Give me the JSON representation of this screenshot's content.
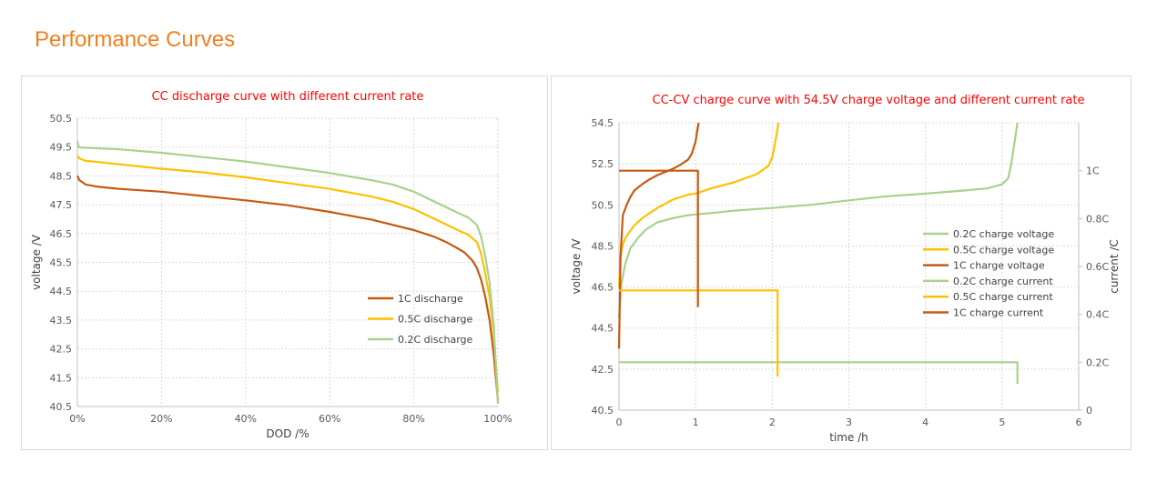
{
  "page": {
    "title": "Performance Curves"
  },
  "chart_data": [
    {
      "type": "line",
      "title": "CC discharge curve with different current rate",
      "xlabel": "DOD /%",
      "ylabel": "voltage /V",
      "xlim": [
        0,
        100
      ],
      "ylim": [
        40.5,
        50.5
      ],
      "x_ticks": [
        0,
        20,
        40,
        60,
        80,
        100
      ],
      "x_tick_labels": [
        "0%",
        "20%",
        "40%",
        "60%",
        "80%",
        "100%"
      ],
      "y_ticks": [
        40.5,
        41.5,
        42.5,
        43.5,
        44.5,
        45.5,
        46.5,
        47.5,
        48.5,
        49.5,
        50.5
      ],
      "y_tick_labels": [
        "40.5",
        "41.5",
        "42.5",
        "43.5",
        "44.5",
        "45.5",
        "46.5",
        "47.5",
        "48.5",
        "49.5",
        "50.5"
      ],
      "grid": true,
      "legend_position": "right-lower",
      "series": [
        {
          "name": "1C discharge",
          "color": "#c55a11",
          "x": [
            0,
            0.5,
            2,
            5,
            10,
            20,
            30,
            40,
            50,
            60,
            70,
            80,
            85,
            88,
            90,
            92,
            94,
            95,
            96,
            97,
            98,
            99,
            100
          ],
          "y": [
            48.5,
            48.35,
            48.2,
            48.12,
            48.05,
            47.95,
            47.8,
            47.65,
            47.48,
            47.25,
            46.98,
            46.62,
            46.38,
            46.18,
            46.02,
            45.85,
            45.55,
            45.3,
            44.9,
            44.3,
            43.5,
            42.3,
            40.7
          ]
        },
        {
          "name": "0.5C discharge",
          "color": "#ffc000",
          "x": [
            0,
            0.5,
            2,
            5,
            10,
            20,
            30,
            40,
            50,
            60,
            70,
            75,
            80,
            85,
            90,
            93,
            95,
            96,
            97,
            98,
            99,
            100
          ],
          "y": [
            49.2,
            49.1,
            49.02,
            48.98,
            48.9,
            48.75,
            48.62,
            48.45,
            48.25,
            48.05,
            47.78,
            47.6,
            47.35,
            47.0,
            46.65,
            46.45,
            46.2,
            45.8,
            45.1,
            44.3,
            43.0,
            41.0
          ]
        },
        {
          "name": "0.2C discharge",
          "color": "#a9d18e",
          "x": [
            0,
            0.3,
            1,
            3,
            10,
            20,
            30,
            40,
            50,
            60,
            70,
            75,
            80,
            85,
            90,
            93,
            95,
            96,
            97,
            98,
            99,
            100
          ],
          "y": [
            49.7,
            49.5,
            49.48,
            49.47,
            49.42,
            49.3,
            49.15,
            49.0,
            48.8,
            48.6,
            48.35,
            48.2,
            47.95,
            47.6,
            47.25,
            47.05,
            46.8,
            46.4,
            45.7,
            44.8,
            43.3,
            40.6
          ]
        }
      ]
    },
    {
      "type": "line",
      "title": "CC-CV charge curve with 54.5V charge voltage and different current rate",
      "xlabel": "time /h",
      "ylabel": "voltage /V",
      "y2label": "current /C",
      "xlim": [
        0,
        6
      ],
      "ylim": [
        40.5,
        54.5
      ],
      "y2lim": [
        0,
        1.2
      ],
      "x_ticks": [
        0,
        1,
        2,
        3,
        4,
        5,
        6
      ],
      "x_tick_labels": [
        "0",
        "1",
        "2",
        "3",
        "4",
        "5",
        "6"
      ],
      "y_ticks": [
        40.5,
        42.5,
        44.5,
        46.5,
        48.5,
        50.5,
        52.5,
        54.5
      ],
      "y_tick_labels": [
        "40.5",
        "42.5",
        "44.5",
        "46.5",
        "48.5",
        "50.5",
        "52.5",
        "54.5"
      ],
      "y2_ticks": [
        0,
        0.2,
        0.4,
        0.6,
        0.8,
        1.0
      ],
      "y2_tick_labels": [
        "0",
        "0.2C",
        "0.4C",
        "0.6C",
        "0.8C",
        "1C"
      ],
      "grid": true,
      "legend_position": "right-center",
      "series": [
        {
          "name": "0.2C charge voltage",
          "axis": "left",
          "color": "#a9d18e",
          "x": [
            0,
            0.03,
            0.08,
            0.15,
            0.25,
            0.35,
            0.5,
            0.7,
            0.9,
            1.2,
            1.5,
            2.0,
            2.5,
            3.0,
            3.5,
            4.0,
            4.5,
            4.8,
            5.0,
            5.08,
            5.12,
            5.16,
            5.2
          ],
          "y": [
            45.0,
            46.6,
            47.6,
            48.4,
            48.9,
            49.3,
            49.65,
            49.85,
            50.0,
            50.1,
            50.22,
            50.35,
            50.5,
            50.72,
            50.92,
            51.05,
            51.2,
            51.3,
            51.5,
            51.8,
            52.5,
            53.5,
            54.5
          ]
        },
        {
          "name": "0.5C charge voltage",
          "axis": "left",
          "color": "#ffc000",
          "x": [
            0,
            0.02,
            0.05,
            0.1,
            0.2,
            0.3,
            0.5,
            0.7,
            0.9,
            1.0,
            1.2,
            1.5,
            1.8,
            1.95,
            2.0,
            2.03,
            2.06,
            2.08
          ],
          "y": [
            46.5,
            48.0,
            48.6,
            49.0,
            49.5,
            49.85,
            50.35,
            50.75,
            51.0,
            51.05,
            51.3,
            51.6,
            52.0,
            52.4,
            52.8,
            53.4,
            54.0,
            54.5
          ]
        },
        {
          "name": "1C charge voltage",
          "axis": "left",
          "color": "#c55a11",
          "x": [
            0,
            0.02,
            0.05,
            0.1,
            0.15,
            0.2,
            0.3,
            0.4,
            0.5,
            0.6,
            0.7,
            0.8,
            0.9,
            0.95,
            1.0,
            1.02,
            1.04
          ],
          "y": [
            43.5,
            48.0,
            50.0,
            50.5,
            50.9,
            51.2,
            51.5,
            51.75,
            51.95,
            52.1,
            52.25,
            52.45,
            52.7,
            53.0,
            53.6,
            54.1,
            54.5
          ]
        },
        {
          "name": "0.2C charge current",
          "axis": "right",
          "color": "#a9d18e",
          "x": [
            0,
            5.18,
            5.2,
            5.2
          ],
          "y": [
            0.2,
            0.2,
            0.2,
            0.11
          ]
        },
        {
          "name": "0.5C charge current",
          "axis": "right",
          "color": "#ffc000",
          "x": [
            0,
            2.05,
            2.07,
            2.07
          ],
          "y": [
            0.5,
            0.5,
            0.5,
            0.14
          ]
        },
        {
          "name": "1C charge current",
          "axis": "right",
          "color": "#c55a11",
          "x": [
            0,
            1.02,
            1.03,
            1.03
          ],
          "y": [
            1.0,
            1.0,
            1.0,
            0.43
          ]
        }
      ]
    }
  ]
}
